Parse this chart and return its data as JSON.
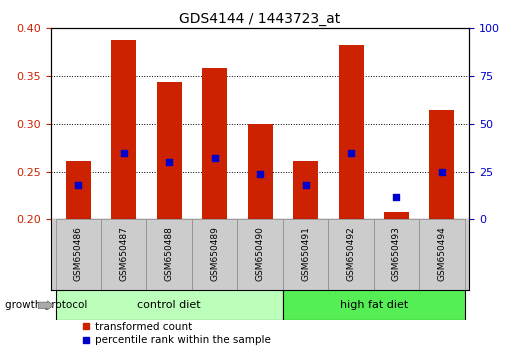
{
  "title": "GDS4144 / 1443723_at",
  "samples": [
    "GSM650486",
    "GSM650487",
    "GSM650488",
    "GSM650489",
    "GSM650490",
    "GSM650491",
    "GSM650492",
    "GSM650493",
    "GSM650494"
  ],
  "red_values": [
    0.261,
    0.388,
    0.344,
    0.358,
    0.3,
    0.261,
    0.383,
    0.208,
    0.315
  ],
  "blue_percentiles": [
    18,
    35,
    30,
    32,
    24,
    18,
    35,
    12,
    25
  ],
  "ylim_left": [
    0.2,
    0.4
  ],
  "ylim_right": [
    0,
    100
  ],
  "yticks_left": [
    0.2,
    0.25,
    0.3,
    0.35,
    0.4
  ],
  "yticks_right": [
    0,
    25,
    50,
    75,
    100
  ],
  "groups": [
    {
      "label": "control diet",
      "start": 0,
      "end": 4,
      "color": "#bbffbb"
    },
    {
      "label": "high fat diet",
      "start": 5,
      "end": 8,
      "color": "#55ee55"
    }
  ],
  "group_header": "growth protocol",
  "red_label": "transformed count",
  "blue_label": "percentile rank within the sample",
  "bar_width": 0.55,
  "bar_color": "#cc2200",
  "dot_color": "#0000cc",
  "bg_color": "#ffffff",
  "left_tick_color": "#cc2200",
  "right_tick_color": "#0000cc",
  "label_bg": "#cccccc"
}
